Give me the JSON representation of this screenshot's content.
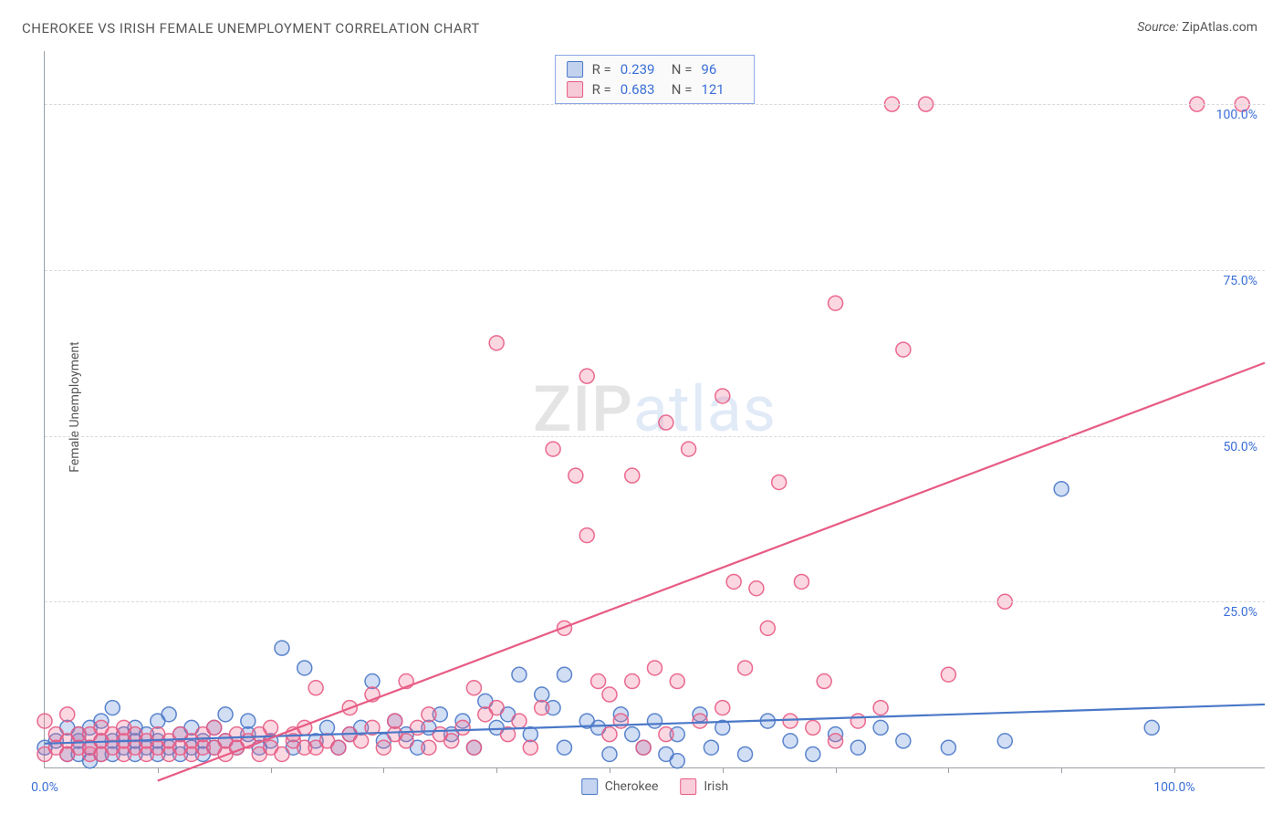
{
  "title": "CHEROKEE VS IRISH FEMALE UNEMPLOYMENT CORRELATION CHART",
  "source_label": "Source:",
  "source_name": "ZipAtlas.com",
  "y_axis_label": "Female Unemployment",
  "watermark": {
    "part1": "ZIP",
    "part2": "atlas"
  },
  "chart": {
    "type": "scatter",
    "background_color": "#ffffff",
    "grid_color": "#d9d9d9",
    "axis_color": "#9aa0a6",
    "tick_label_color": "#3b6fd8",
    "label_fontsize": 14,
    "xlim": [
      0,
      108
    ],
    "ylim": [
      0,
      108
    ],
    "x_tick_labels": [
      {
        "value": 0,
        "text": "0.0%"
      },
      {
        "value": 100,
        "text": "100.0%"
      }
    ],
    "y_tick_labels": [
      {
        "value": 25,
        "text": "25.0%"
      },
      {
        "value": 50,
        "text": "50.0%"
      },
      {
        "value": 75,
        "text": "75.0%"
      },
      {
        "value": 100,
        "text": "100.0%"
      }
    ],
    "y_gridlines": [
      25,
      50,
      75,
      100
    ],
    "x_minor_ticks": 10,
    "marker_radius": 8,
    "marker_fill_opacity": 0.28,
    "marker_stroke_opacity": 0.9,
    "line_width": 2.2,
    "series": [
      {
        "name": "Cherokee",
        "color": "#5a88d8",
        "stroke": "#4a78c8",
        "R": "0.239",
        "N": "96",
        "trend": {
          "x1": 0,
          "y1": 3.6,
          "x2": 108,
          "y2": 9.5
        },
        "points": [
          [
            0,
            3
          ],
          [
            1,
            4
          ],
          [
            2,
            2
          ],
          [
            2,
            6
          ],
          [
            3,
            2
          ],
          [
            3,
            4
          ],
          [
            3,
            5
          ],
          [
            4,
            1
          ],
          [
            4,
            3
          ],
          [
            4,
            6
          ],
          [
            5,
            2
          ],
          [
            5,
            4
          ],
          [
            5,
            7
          ],
          [
            6,
            2
          ],
          [
            6,
            4
          ],
          [
            6,
            9
          ],
          [
            7,
            3
          ],
          [
            7,
            5
          ],
          [
            8,
            2
          ],
          [
            8,
            4
          ],
          [
            8,
            6
          ],
          [
            9,
            3
          ],
          [
            9,
            5
          ],
          [
            10,
            2
          ],
          [
            10,
            4
          ],
          [
            10,
            7
          ],
          [
            11,
            3
          ],
          [
            11,
            8
          ],
          [
            12,
            2
          ],
          [
            12,
            5
          ],
          [
            13,
            3
          ],
          [
            13,
            6
          ],
          [
            14,
            2
          ],
          [
            14,
            4
          ],
          [
            15,
            3
          ],
          [
            15,
            6
          ],
          [
            16,
            4
          ],
          [
            16,
            8
          ],
          [
            17,
            3
          ],
          [
            18,
            5
          ],
          [
            18,
            7
          ],
          [
            19,
            3
          ],
          [
            20,
            4
          ],
          [
            21,
            18
          ],
          [
            22,
            3
          ],
          [
            23,
            15
          ],
          [
            24,
            4
          ],
          [
            25,
            6
          ],
          [
            26,
            3
          ],
          [
            27,
            5
          ],
          [
            28,
            6
          ],
          [
            29,
            13
          ],
          [
            30,
            4
          ],
          [
            31,
            7
          ],
          [
            32,
            5
          ],
          [
            33,
            3
          ],
          [
            34,
            6
          ],
          [
            35,
            8
          ],
          [
            36,
            5
          ],
          [
            37,
            7
          ],
          [
            38,
            3
          ],
          [
            39,
            10
          ],
          [
            40,
            6
          ],
          [
            41,
            8
          ],
          [
            42,
            14
          ],
          [
            43,
            5
          ],
          [
            44,
            11
          ],
          [
            45,
            9
          ],
          [
            46,
            14
          ],
          [
            46,
            3
          ],
          [
            48,
            7
          ],
          [
            49,
            6
          ],
          [
            50,
            2
          ],
          [
            51,
            8
          ],
          [
            52,
            5
          ],
          [
            53,
            3
          ],
          [
            54,
            7
          ],
          [
            55,
            2
          ],
          [
            56,
            5
          ],
          [
            56,
            1
          ],
          [
            58,
            8
          ],
          [
            59,
            3
          ],
          [
            60,
            6
          ],
          [
            62,
            2
          ],
          [
            64,
            7
          ],
          [
            66,
            4
          ],
          [
            68,
            2
          ],
          [
            70,
            5
          ],
          [
            72,
            3
          ],
          [
            74,
            6
          ],
          [
            76,
            4
          ],
          [
            80,
            3
          ],
          [
            85,
            4
          ],
          [
            90,
            42
          ],
          [
            98,
            6
          ]
        ]
      },
      {
        "name": "Irish",
        "color": "#ef6f94",
        "stroke": "#e75b84",
        "R": "0.683",
        "N": "121",
        "trend": {
          "x1": 10,
          "y1": -2,
          "x2": 108,
          "y2": 61
        },
        "points": [
          [
            0,
            2
          ],
          [
            0,
            7
          ],
          [
            1,
            3
          ],
          [
            1,
            5
          ],
          [
            2,
            2
          ],
          [
            2,
            4
          ],
          [
            2,
            8
          ],
          [
            3,
            3
          ],
          [
            3,
            5
          ],
          [
            4,
            2
          ],
          [
            4,
            3
          ],
          [
            4,
            5
          ],
          [
            5,
            2
          ],
          [
            5,
            4
          ],
          [
            5,
            6
          ],
          [
            6,
            3
          ],
          [
            6,
            5
          ],
          [
            7,
            2
          ],
          [
            7,
            4
          ],
          [
            7,
            6
          ],
          [
            8,
            3
          ],
          [
            8,
            5
          ],
          [
            9,
            2
          ],
          [
            9,
            4
          ],
          [
            10,
            3
          ],
          [
            10,
            5
          ],
          [
            11,
            2
          ],
          [
            11,
            4
          ],
          [
            12,
            3
          ],
          [
            12,
            5
          ],
          [
            13,
            2
          ],
          [
            13,
            4
          ],
          [
            14,
            3
          ],
          [
            14,
            5
          ],
          [
            15,
            3
          ],
          [
            15,
            6
          ],
          [
            16,
            2
          ],
          [
            16,
            4
          ],
          [
            17,
            3
          ],
          [
            17,
            5
          ],
          [
            18,
            4
          ],
          [
            19,
            2
          ],
          [
            19,
            5
          ],
          [
            20,
            3
          ],
          [
            20,
            6
          ],
          [
            21,
            2
          ],
          [
            22,
            4
          ],
          [
            22,
            5
          ],
          [
            23,
            3
          ],
          [
            23,
            6
          ],
          [
            24,
            3
          ],
          [
            24,
            12
          ],
          [
            25,
            4
          ],
          [
            26,
            3
          ],
          [
            27,
            5
          ],
          [
            27,
            9
          ],
          [
            28,
            4
          ],
          [
            29,
            6
          ],
          [
            29,
            11
          ],
          [
            30,
            3
          ],
          [
            31,
            5
          ],
          [
            31,
            7
          ],
          [
            32,
            4
          ],
          [
            32,
            13
          ],
          [
            33,
            6
          ],
          [
            34,
            3
          ],
          [
            34,
            8
          ],
          [
            35,
            5
          ],
          [
            36,
            4
          ],
          [
            37,
            6
          ],
          [
            38,
            3
          ],
          [
            38,
            12
          ],
          [
            39,
            8
          ],
          [
            40,
            9
          ],
          [
            40,
            64
          ],
          [
            41,
            5
          ],
          [
            42,
            7
          ],
          [
            43,
            3
          ],
          [
            44,
            9
          ],
          [
            45,
            48
          ],
          [
            46,
            21
          ],
          [
            47,
            44
          ],
          [
            48,
            59
          ],
          [
            48,
            35
          ],
          [
            49,
            13
          ],
          [
            50,
            5
          ],
          [
            50,
            11
          ],
          [
            51,
            7
          ],
          [
            52,
            44
          ],
          [
            52,
            13
          ],
          [
            53,
            3
          ],
          [
            54,
            15
          ],
          [
            55,
            52
          ],
          [
            55,
            5
          ],
          [
            56,
            13
          ],
          [
            57,
            48
          ],
          [
            58,
            7
          ],
          [
            60,
            56
          ],
          [
            60,
            9
          ],
          [
            61,
            28
          ],
          [
            62,
            15
          ],
          [
            63,
            27
          ],
          [
            64,
            21
          ],
          [
            65,
            43
          ],
          [
            66,
            7
          ],
          [
            67,
            28
          ],
          [
            68,
            6
          ],
          [
            69,
            13
          ],
          [
            70,
            70
          ],
          [
            70,
            4
          ],
          [
            72,
            7
          ],
          [
            74,
            9
          ],
          [
            75,
            100
          ],
          [
            76,
            63
          ],
          [
            78,
            100
          ],
          [
            80,
            14
          ],
          [
            85,
            25
          ],
          [
            102,
            100
          ],
          [
            106,
            100
          ]
        ]
      }
    ]
  },
  "legend_top": {
    "r_label": "R =",
    "n_label": "N ="
  },
  "legend_bottom": [
    {
      "name": "Cherokee",
      "color": "#5a88d8"
    },
    {
      "name": "Irish",
      "color": "#ef6f94"
    }
  ]
}
